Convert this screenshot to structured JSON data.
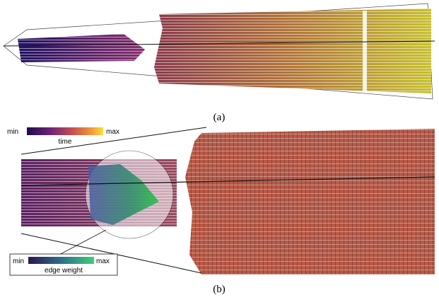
{
  "panel_a": {
    "caption": "(a)"
  },
  "panel_b": {
    "caption": "(b)",
    "time_legend": {
      "min": "min",
      "max": "max",
      "title": "time"
    },
    "edge_legend": {
      "min": "min",
      "max": "max",
      "title": "edge weight"
    }
  }
}
